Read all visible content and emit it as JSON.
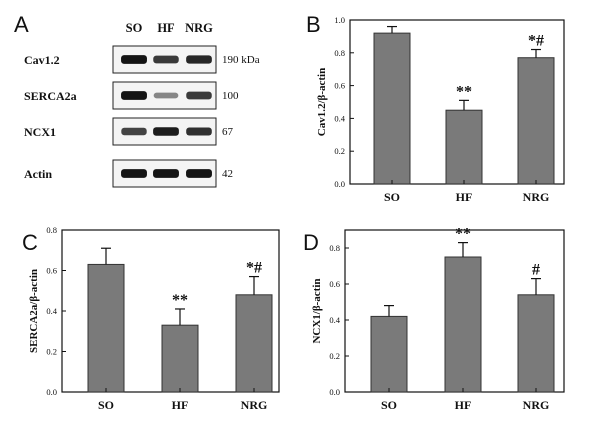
{
  "blot": {
    "letter": "A",
    "lanes": [
      "SO",
      "HF",
      "NRG"
    ],
    "rows": [
      {
        "name": "Cav1.2",
        "kda": "190 kDa",
        "intensity": [
          0.95,
          0.75,
          0.85
        ]
      },
      {
        "name": "SERCA2a",
        "kda": "100",
        "intensity": [
          0.95,
          0.35,
          0.75
        ]
      },
      {
        "name": "NCX1",
        "kda": "67",
        "intensity": [
          0.7,
          0.9,
          0.8
        ]
      },
      {
        "name": "Actin",
        "kda": "42",
        "intensity": [
          0.95,
          0.95,
          0.95
        ]
      }
    ]
  },
  "chart_data": [
    {
      "panel": "B",
      "type": "bar",
      "categories": [
        "SO",
        "HF",
        "NRG"
      ],
      "values": [
        0.92,
        0.45,
        0.77
      ],
      "errors": [
        0.04,
        0.06,
        0.05
      ],
      "significance": [
        "",
        "**",
        "*#"
      ],
      "ylabel": "Cav1.2/β-actin",
      "ylim": [
        0,
        1.0
      ],
      "yticks": [
        "0.0",
        "0.2",
        "0.4",
        "0.6",
        "0.8",
        "1.0"
      ],
      "colors": {
        "bar": "#7a7a7a",
        "axis": "#111111"
      }
    },
    {
      "panel": "C",
      "type": "bar",
      "categories": [
        "SO",
        "HF",
        "NRG"
      ],
      "values": [
        0.63,
        0.33,
        0.48
      ],
      "errors": [
        0.08,
        0.08,
        0.09
      ],
      "significance": [
        "",
        "**",
        "*#"
      ],
      "ylabel": "SERCA2a/β-actin",
      "ylim": [
        0,
        0.8
      ],
      "yticks": [
        "0.0",
        "0.2",
        "0.4",
        "0.6",
        "0.8"
      ],
      "colors": {
        "bar": "#7a7a7a",
        "axis": "#111111"
      }
    },
    {
      "panel": "D",
      "type": "bar",
      "categories": [
        "SO",
        "HF",
        "NRG"
      ],
      "values": [
        0.42,
        0.75,
        0.54
      ],
      "errors": [
        0.06,
        0.08,
        0.09
      ],
      "significance": [
        "",
        "**",
        "#"
      ],
      "ylabel": "NCX1/β-actin",
      "ylim": [
        0,
        0.9
      ],
      "yticks": [
        "0.0",
        "0.2",
        "0.4",
        "0.6",
        "0.8"
      ],
      "colors": {
        "bar": "#7a7a7a",
        "axis": "#111111"
      }
    }
  ]
}
